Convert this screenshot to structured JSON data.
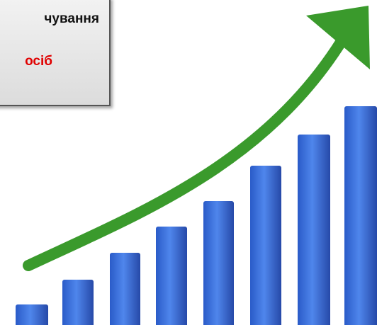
{
  "caption": {
    "line1": "чування",
    "line2": "осіб"
  }
}
